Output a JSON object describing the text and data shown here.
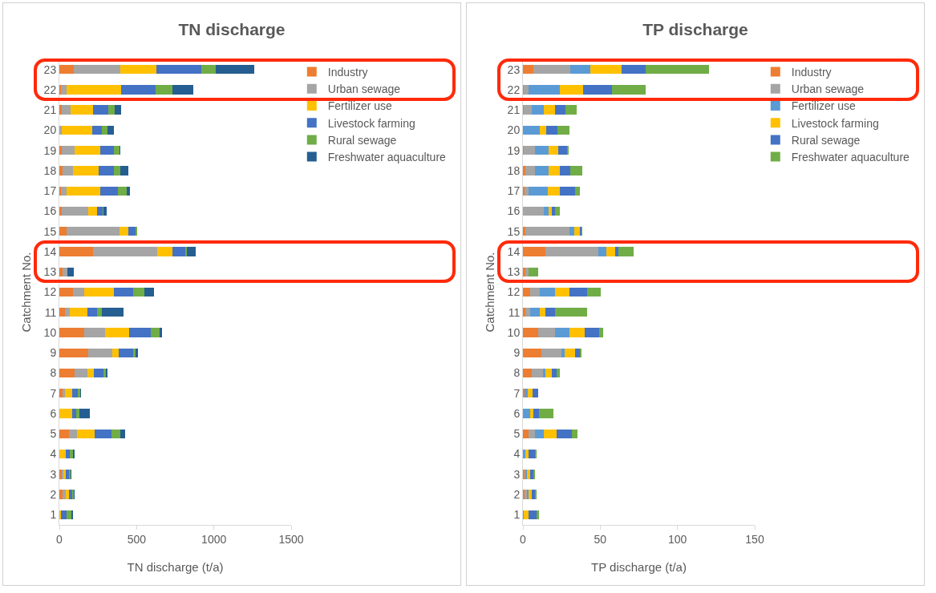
{
  "chart_data": [
    {
      "type": "bar",
      "orientation": "horizontal",
      "stacked": true,
      "title": "TN discharge",
      "xlabel": "TN discharge (t/a)",
      "ylabel": "Catchment No.",
      "categories": [
        "23",
        "22",
        "21",
        "20",
        "19",
        "18",
        "17",
        "16",
        "15",
        "14",
        "13",
        "12",
        "11",
        "10",
        "9",
        "8",
        "7",
        "6",
        "5",
        "4",
        "3",
        "2",
        "1"
      ],
      "xlim": [
        0,
        1500
      ],
      "xticks": [
        0,
        500,
        1000,
        1500
      ],
      "grid": false,
      "legend": "top right",
      "series": [
        {
          "name": "Industry",
          "color": "#ed7d31",
          "values": [
            93,
            9,
            16,
            0,
            16,
            20,
            9,
            13,
            47,
            217,
            23,
            87,
            35,
            159,
            186,
            99,
            20,
            0,
            63,
            0,
            13,
            23,
            0
          ]
        },
        {
          "name": "Urban sewage",
          "color": "#a5a5a5",
          "values": [
            300,
            40,
            57,
            16,
            81,
            69,
            36,
            176,
            344,
            418,
            27,
            72,
            31,
            137,
            157,
            84,
            17,
            0,
            51,
            0,
            15,
            19,
            0
          ]
        },
        {
          "name": "Fertilizer use",
          "color": "#ffc000",
          "values": [
            236,
            353,
            144,
            197,
            169,
            164,
            220,
            55,
            53,
            95,
            0,
            192,
            117,
            155,
            40,
            40,
            45,
            83,
            115,
            41,
            13,
            20,
            12
          ]
        },
        {
          "name": "Livestock farming",
          "color": "#4472c4",
          "values": [
            290,
            221,
            100,
            61,
            87,
            100,
            115,
            35,
            51,
            83,
            3,
            129,
            59,
            143,
            96,
            60,
            36,
            28,
            107,
            29,
            20,
            23,
            37
          ]
        },
        {
          "name": "Rural sewage",
          "color": "#70ad47",
          "values": [
            91,
            107,
            43,
            36,
            37,
            40,
            56,
            7,
            7,
            11,
            0,
            71,
            33,
            55,
            16,
            16,
            17,
            21,
            59,
            20,
            12,
            9,
            27
          ]
        },
        {
          "name": "Freshwater aquaculture",
          "color": "#255e91",
          "values": [
            253,
            136,
            39,
            45,
            4,
            51,
            20,
            21,
            4,
            60,
            39,
            63,
            141,
            15,
            12,
            11,
            4,
            63,
            29,
            7,
            5,
            4,
            12
          ]
        }
      ]
    },
    {
      "type": "bar",
      "orientation": "horizontal",
      "stacked": true,
      "title": "TP discharge",
      "xlabel": "TP discharge (t/a)",
      "ylabel": "Catchment No.",
      "categories": [
        "23",
        "22",
        "21",
        "20",
        "19",
        "18",
        "17",
        "16",
        "15",
        "14",
        "13",
        "12",
        "11",
        "10",
        "9",
        "8",
        "7",
        "6",
        "5",
        "4",
        "3",
        "2",
        "1"
      ],
      "xlim": [
        0,
        150
      ],
      "xticks": [
        0,
        50,
        100,
        150
      ],
      "grid": false,
      "legend": "top right",
      "series": [
        {
          "name": "Industry",
          "color": "#ed7d31",
          "values": [
            6.7,
            0.6,
            0.6,
            0,
            0.6,
            1.7,
            0.8,
            0,
            1.7,
            14.6,
            1.7,
            4.7,
            1.7,
            9.9,
            11.7,
            5.9,
            0.8,
            0,
            3.7,
            0,
            0.8,
            0.8,
            0
          ]
        },
        {
          "name": "Urban sewage",
          "color": "#a5a5a5",
          "values": [
            24.0,
            3.1,
            5.1,
            null,
            7.1,
            6.1,
            2.9,
            13.7,
            28.2,
            34.0,
            2.0,
            6.0,
            3.1,
            10.8,
            13.0,
            7.0,
            null,
            0,
            3.9,
            0,
            0.9,
            2.0,
            0
          ]
        },
        {
          "name": "Fertilizer use",
          "color": "#5b9bd5",
          "values": [
            13.0,
            20.1,
            8.0,
            10.9,
            9.0,
            9.0,
            12.2,
            3.1,
            3.1,
            5.2,
            0,
            10.0,
            6.0,
            9.2,
            2.2,
            1.8,
            2.3,
            4.7,
            6.1,
            1.7,
            1.1,
            0.9,
            0.6
          ]
        },
        {
          "name": "Livestock farming",
          "color": "#ffc000",
          "values": [
            20.0,
            14.9,
            7.0,
            4.2,
            6.1,
            7.0,
            7.9,
            1.8,
            3.8,
            5.7,
            0,
            9.2,
            3.9,
            9.9,
            7.0,
            3.9,
            3.1,
            2.0,
            7.9,
            2.0,
            1.9,
            2.2,
            3.1
          ]
        },
        {
          "name": "Rural sewage",
          "color": "#4472c4",
          "values": [
            15.9,
            19.1,
            7.0,
            7.0,
            5.7,
            7.0,
            10.0,
            2.2,
            0.9,
            2.2,
            0,
            11.7,
            6.1,
            9.7,
            2.9,
            3.1,
            3.9,
            3.9,
            10.0,
            4.1,
            2.0,
            1.9,
            5.2
          ]
        },
        {
          "name": "Freshwater aquaculture",
          "color": "#70ad47",
          "values": [
            40.8,
            21.8,
            6.9,
            7.8,
            1.1,
            7.8,
            2.9,
            2.9,
            0.9,
            9.9,
            6.1,
            9.0,
            20.9,
            2.2,
            0.9,
            2.0,
            0,
            9.0,
            3.9,
            1.0,
            0.9,
            1.0,
            1.7
          ]
        }
      ]
    }
  ]
}
